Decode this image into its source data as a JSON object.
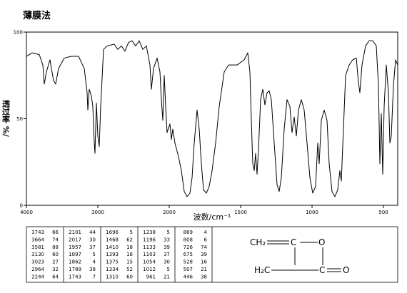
{
  "chart_data": {
    "type": "line",
    "title": "薄膜法",
    "x_label": "波数/cm⁻¹",
    "y_label": "透过率 %/",
    "xlim": [
      4000,
      400
    ],
    "x_scale_break": 2000,
    "xticks": [
      4000,
      3000,
      2000,
      1500,
      1000,
      500
    ],
    "ylim": [
      0,
      100
    ],
    "yticks": [
      0,
      50,
      100
    ],
    "color": "#000000",
    "x": [
      4000,
      3920,
      3820,
      3770,
      3750,
      3720,
      3670,
      3650,
      3620,
      3590,
      3550,
      3470,
      3370,
      3270,
      3190,
      3150,
      3140,
      3120,
      3090,
      3070,
      3050,
      3040,
      3020,
      3000,
      2980,
      2960,
      2920,
      2870,
      2770,
      2720,
      2670,
      2620,
      2570,
      2520,
      2470,
      2420,
      2370,
      2320,
      2270,
      2250,
      2220,
      2170,
      2130,
      2110,
      2090,
      2070,
      2050,
      2030,
      1995,
      1985,
      1975,
      1960,
      1935,
      1915,
      1895,
      1875,
      1855,
      1840,
      1825,
      1805,
      1790,
      1775,
      1760,
      1740,
      1720,
      1700,
      1675,
      1650,
      1615,
      1585,
      1525,
      1475,
      1450,
      1435,
      1425,
      1415,
      1405,
      1395,
      1385,
      1375,
      1360,
      1345,
      1330,
      1315,
      1300,
      1285,
      1265,
      1245,
      1230,
      1215,
      1195,
      1175,
      1155,
      1140,
      1125,
      1110,
      1095,
      1075,
      1055,
      1035,
      1015,
      995,
      975,
      960,
      950,
      935,
      915,
      895,
      880,
      860,
      840,
      820,
      805,
      795,
      785,
      765,
      740,
      715,
      690,
      675,
      665,
      650,
      625,
      600,
      575,
      550,
      535,
      525,
      515,
      505,
      495,
      480,
      465,
      455,
      445,
      430,
      415,
      400
    ],
    "values": [
      86,
      88,
      87,
      81,
      70,
      77,
      84,
      79,
      72,
      70,
      79,
      85,
      86,
      86,
      79,
      65,
      55,
      67,
      63,
      57,
      36,
      30,
      59,
      40,
      34,
      57,
      90,
      92,
      93,
      90,
      92,
      89,
      94,
      95,
      92,
      95,
      90,
      92,
      81,
      67,
      79,
      85,
      77,
      61,
      49,
      75,
      57,
      42,
      47,
      38,
      44,
      36,
      28,
      20,
      8,
      5,
      7,
      16,
      36,
      55,
      44,
      24,
      9,
      7,
      11,
      20,
      36,
      57,
      77,
      81,
      81,
      84,
      88,
      77,
      49,
      24,
      20,
      30,
      18,
      32,
      61,
      67,
      58,
      65,
      66,
      61,
      36,
      12,
      8,
      16,
      44,
      61,
      57,
      42,
      51,
      40,
      55,
      61,
      55,
      36,
      16,
      7,
      11,
      36,
      24,
      49,
      55,
      49,
      24,
      8,
      5,
      9,
      20,
      14,
      34,
      75,
      81,
      84,
      85,
      71,
      65,
      81,
      92,
      95,
      95,
      92,
      69,
      24,
      53,
      18,
      57,
      81,
      65,
      36,
      40,
      69,
      84,
      81
    ],
    "peak_table": [
      [
        [
          "3743",
          "66"
        ],
        [
          "3664",
          "74"
        ],
        [
          "3581",
          "88"
        ],
        [
          "3130",
          "60"
        ],
        [
          "3023",
          "27"
        ],
        [
          "2964",
          "32"
        ],
        [
          "2244",
          "64"
        ]
      ],
      [
        [
          "2101",
          "44"
        ],
        [
          "2017",
          "30"
        ],
        [
          "1957",
          "37"
        ],
        [
          "1897",
          "5"
        ],
        [
          "1862",
          "4"
        ],
        [
          "1789",
          "38"
        ],
        [
          "1743",
          "7"
        ]
      ],
      [
        [
          "1696",
          "5"
        ],
        [
          "1468",
          "62"
        ],
        [
          "1410",
          "18"
        ],
        [
          "1393",
          "18"
        ],
        [
          "1375",
          "15"
        ],
        [
          "1334",
          "52"
        ],
        [
          "1310",
          "60"
        ]
      ],
      [
        [
          "1238",
          "5"
        ],
        [
          "1196",
          "33"
        ],
        [
          "1133",
          "39"
        ],
        [
          "1103",
          "37"
        ],
        [
          "1054",
          "30"
        ],
        [
          "1012",
          "5"
        ],
        [
          "961",
          "21"
        ]
      ],
      [
        [
          "869",
          "4"
        ],
        [
          "808",
          "6"
        ],
        [
          "726",
          "74"
        ],
        [
          "675",
          "39"
        ],
        [
          "528",
          "16"
        ],
        [
          "507",
          "21"
        ],
        [
          "446",
          "38"
        ]
      ]
    ],
    "structure": {
      "atoms": [
        "CH₂",
        "C",
        "O",
        "H₂C",
        "C",
        "O"
      ]
    }
  }
}
